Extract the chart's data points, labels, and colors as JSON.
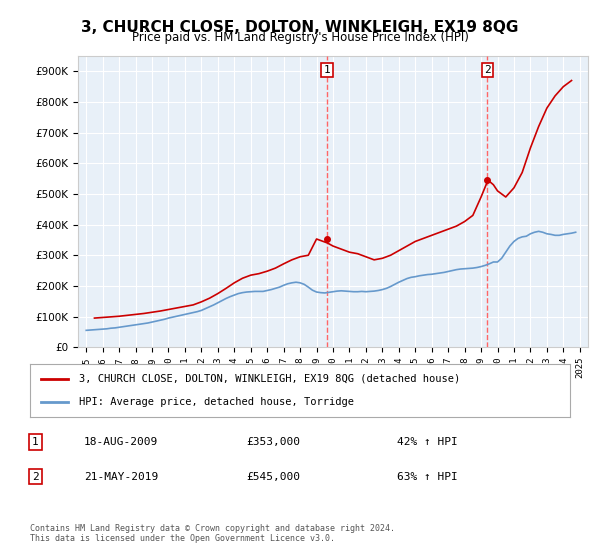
{
  "title": "3, CHURCH CLOSE, DOLTON, WINKLEIGH, EX19 8QG",
  "subtitle": "Price paid vs. HM Land Registry's House Price Index (HPI)",
  "red_label": "3, CHURCH CLOSE, DOLTON, WINKLEIGH, EX19 8QG (detached house)",
  "blue_label": "HPI: Average price, detached house, Torridge",
  "footer": "Contains HM Land Registry data © Crown copyright and database right 2024.\nThis data is licensed under the Open Government Licence v3.0.",
  "marker1_date": "18-AUG-2009",
  "marker1_price": "£353,000",
  "marker1_hpi": "42% ↑ HPI",
  "marker2_date": "21-MAY-2019",
  "marker2_price": "£545,000",
  "marker2_hpi": "63% ↑ HPI",
  "red_color": "#cc0000",
  "blue_color": "#6699cc",
  "vline_color": "#ff6666",
  "marker_box_color": "#cc0000",
  "background_chart": "#e8f0f8",
  "background_fig": "#ffffff",
  "ylim": [
    0,
    950000
  ],
  "yticks": [
    0,
    100000,
    200000,
    300000,
    400000,
    500000,
    600000,
    700000,
    800000,
    900000
  ],
  "ytick_labels": [
    "£0",
    "£100K",
    "£200K",
    "£300K",
    "£400K",
    "£500K",
    "£600K",
    "£700K",
    "£800K",
    "£900K"
  ],
  "xlim_start": 1994.5,
  "xlim_end": 2025.5,
  "hpi_years": [
    1995,
    1995.25,
    1995.5,
    1995.75,
    1996,
    1996.25,
    1996.5,
    1996.75,
    1997,
    1997.25,
    1997.5,
    1997.75,
    1998,
    1998.25,
    1998.5,
    1998.75,
    1999,
    1999.25,
    1999.5,
    1999.75,
    2000,
    2000.25,
    2000.5,
    2000.75,
    2001,
    2001.25,
    2001.5,
    2001.75,
    2002,
    2002.25,
    2002.5,
    2002.75,
    2003,
    2003.25,
    2003.5,
    2003.75,
    2004,
    2004.25,
    2004.5,
    2004.75,
    2005,
    2005.25,
    2005.5,
    2005.75,
    2006,
    2006.25,
    2006.5,
    2006.75,
    2007,
    2007.25,
    2007.5,
    2007.75,
    2008,
    2008.25,
    2008.5,
    2008.75,
    2009,
    2009.25,
    2009.5,
    2009.75,
    2010,
    2010.25,
    2010.5,
    2010.75,
    2011,
    2011.25,
    2011.5,
    2011.75,
    2012,
    2012.25,
    2012.5,
    2012.75,
    2013,
    2013.25,
    2013.5,
    2013.75,
    2014,
    2014.25,
    2014.5,
    2014.75,
    2015,
    2015.25,
    2015.5,
    2015.75,
    2016,
    2016.25,
    2016.5,
    2016.75,
    2017,
    2017.25,
    2017.5,
    2017.75,
    2018,
    2018.25,
    2018.5,
    2018.75,
    2019,
    2019.25,
    2019.5,
    2019.75,
    2020,
    2020.25,
    2020.5,
    2020.75,
    2021,
    2021.25,
    2021.5,
    2021.75,
    2022,
    2022.25,
    2022.5,
    2022.75,
    2023,
    2023.25,
    2023.5,
    2023.75,
    2024,
    2024.25,
    2024.5,
    2024.75
  ],
  "hpi_values": [
    55000,
    56000,
    57000,
    58000,
    59000,
    60000,
    62000,
    63000,
    65000,
    67000,
    69000,
    71000,
    73000,
    75000,
    77000,
    79000,
    82000,
    85000,
    88000,
    91000,
    95000,
    98000,
    101000,
    104000,
    107000,
    110000,
    113000,
    116000,
    120000,
    126000,
    132000,
    138000,
    145000,
    152000,
    159000,
    165000,
    170000,
    175000,
    178000,
    180000,
    181000,
    182000,
    182000,
    182000,
    185000,
    188000,
    192000,
    196000,
    202000,
    207000,
    210000,
    212000,
    210000,
    205000,
    196000,
    186000,
    180000,
    178000,
    177000,
    179000,
    181000,
    183000,
    184000,
    183000,
    182000,
    181000,
    181000,
    182000,
    181000,
    182000,
    183000,
    185000,
    188000,
    192000,
    198000,
    205000,
    212000,
    218000,
    224000,
    228000,
    230000,
    233000,
    235000,
    237000,
    238000,
    240000,
    242000,
    244000,
    247000,
    250000,
    253000,
    255000,
    256000,
    257000,
    258000,
    260000,
    263000,
    267000,
    272000,
    278000,
    278000,
    290000,
    310000,
    330000,
    345000,
    355000,
    360000,
    362000,
    370000,
    375000,
    378000,
    375000,
    370000,
    368000,
    365000,
    365000,
    368000,
    370000,
    372000,
    375000
  ],
  "red_years": [
    1995.5,
    1996.0,
    1996.5,
    1997.0,
    1997.5,
    1998.0,
    1998.5,
    1999.0,
    1999.5,
    2000.0,
    2000.5,
    2001.0,
    2001.5,
    2002.0,
    2002.5,
    2003.0,
    2003.5,
    2004.0,
    2004.5,
    2005.0,
    2005.5,
    2006.0,
    2006.5,
    2007.0,
    2007.5,
    2008.0,
    2008.5,
    2009.0,
    2009.66,
    2010.0,
    2010.5,
    2011.0,
    2011.5,
    2012.0,
    2012.5,
    2013.0,
    2013.5,
    2014.0,
    2014.5,
    2015.0,
    2015.5,
    2016.0,
    2016.5,
    2017.0,
    2017.5,
    2018.0,
    2018.5,
    2019.0,
    2019.42,
    2019.75,
    2020.0,
    2020.5,
    2021.0,
    2021.5,
    2022.0,
    2022.5,
    2023.0,
    2023.5,
    2024.0,
    2024.5
  ],
  "red_values": [
    95000,
    97000,
    99000,
    101000,
    104000,
    107000,
    110000,
    114000,
    118000,
    123000,
    128000,
    133000,
    138000,
    148000,
    160000,
    175000,
    192000,
    210000,
    225000,
    235000,
    240000,
    248000,
    258000,
    272000,
    285000,
    295000,
    300000,
    353000,
    340000,
    330000,
    320000,
    310000,
    305000,
    295000,
    285000,
    290000,
    300000,
    315000,
    330000,
    345000,
    355000,
    365000,
    375000,
    385000,
    395000,
    410000,
    430000,
    490000,
    545000,
    530000,
    510000,
    490000,
    520000,
    570000,
    650000,
    720000,
    780000,
    820000,
    850000,
    870000
  ],
  "vline1_x": 2009.63,
  "vline2_x": 2019.38,
  "sale1_x": 2009.63,
  "sale1_y": 353000,
  "sale2_x": 2019.38,
  "sale2_y": 545000
}
